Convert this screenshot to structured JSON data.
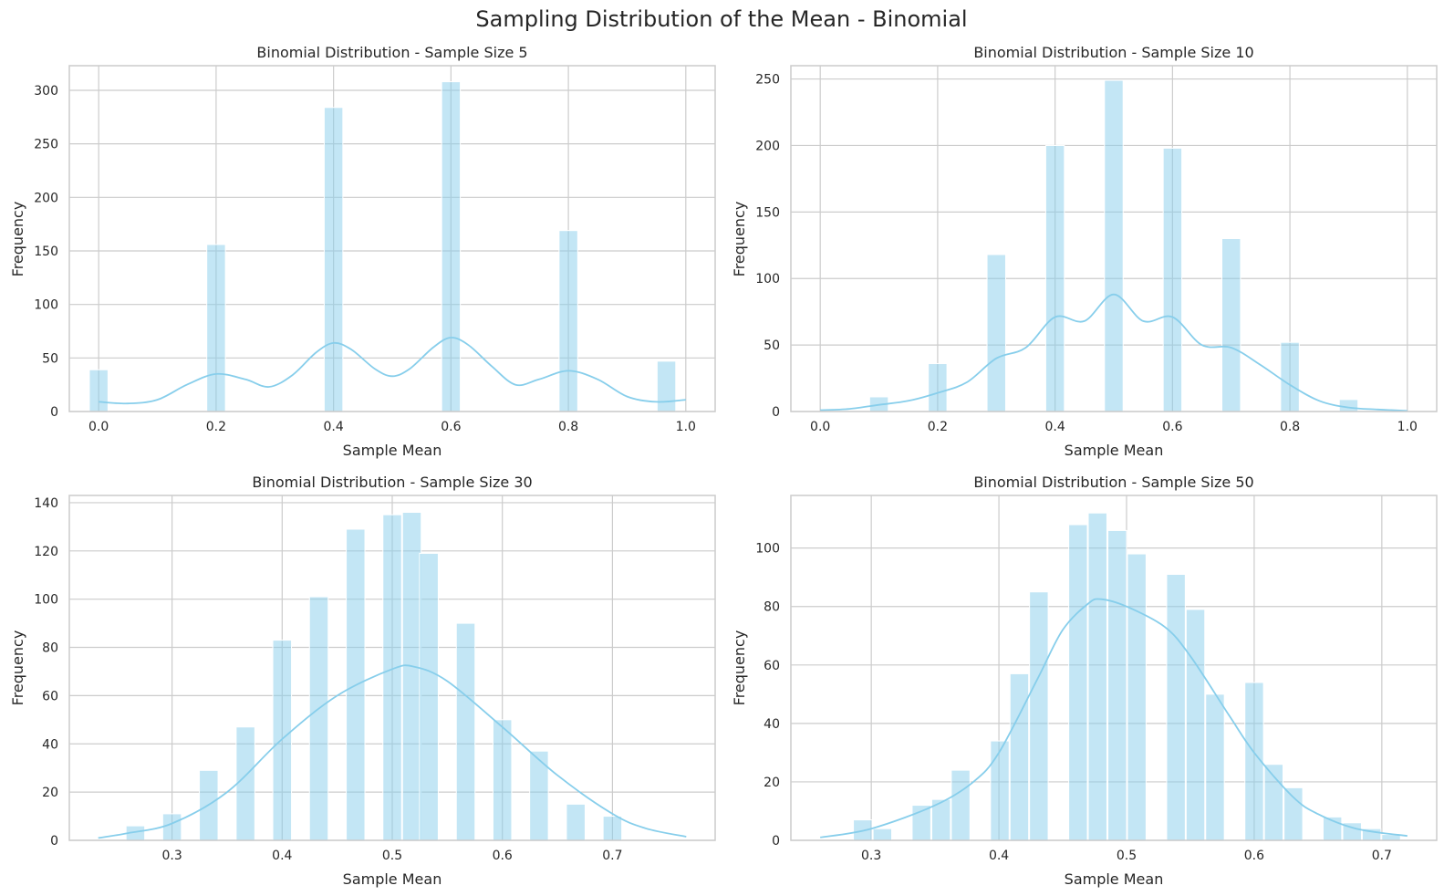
{
  "figure": {
    "title": "Sampling Distribution of the Mean - Binomial",
    "bar_color": "#87ceeb",
    "bar_opacity": 0.5,
    "kde_color": "#87ceeb",
    "grid": true
  },
  "chart_data": [
    {
      "type": "bar",
      "title": "Binomial Distribution - Sample Size 5",
      "xlabel": "Sample Mean",
      "ylabel": "Frequency",
      "xlim": [
        -0.05,
        1.05
      ],
      "ylim": [
        0,
        323
      ],
      "xticks": [
        0.0,
        0.2,
        0.4,
        0.6,
        0.8,
        1.0
      ],
      "xtick_labels": [
        "0.0",
        "0.2",
        "0.4",
        "0.6",
        "0.8",
        "1.0"
      ],
      "yticks": [
        0,
        50,
        100,
        150,
        200,
        250,
        300
      ],
      "bin_width": 0.0333,
      "bars": [
        {
          "x": 0.0,
          "y": 39
        },
        {
          "x": 0.2,
          "y": 156
        },
        {
          "x": 0.4,
          "y": 284
        },
        {
          "x": 0.6,
          "y": 308
        },
        {
          "x": 0.8,
          "y": 169
        },
        {
          "x": 0.967,
          "y": 47
        }
      ],
      "kde": [
        [
          0.0,
          9
        ],
        [
          0.05,
          7.5
        ],
        [
          0.1,
          11
        ],
        [
          0.15,
          25
        ],
        [
          0.2,
          35
        ],
        [
          0.25,
          30
        ],
        [
          0.29,
          23
        ],
        [
          0.33,
          34
        ],
        [
          0.37,
          55
        ],
        [
          0.4,
          64
        ],
        [
          0.43,
          58
        ],
        [
          0.47,
          40
        ],
        [
          0.5,
          33
        ],
        [
          0.53,
          40
        ],
        [
          0.57,
          60
        ],
        [
          0.6,
          69
        ],
        [
          0.63,
          62
        ],
        [
          0.67,
          42
        ],
        [
          0.71,
          25
        ],
        [
          0.75,
          30
        ],
        [
          0.8,
          38
        ],
        [
          0.85,
          30
        ],
        [
          0.9,
          14
        ],
        [
          0.95,
          9
        ],
        [
          1.0,
          11
        ]
      ]
    },
    {
      "type": "bar",
      "title": "Binomial Distribution - Sample Size 10",
      "xlabel": "Sample Mean",
      "ylabel": "Frequency",
      "xlim": [
        -0.05,
        1.05
      ],
      "ylim": [
        0,
        260
      ],
      "xticks": [
        0.0,
        0.2,
        0.4,
        0.6,
        0.8,
        1.0
      ],
      "xtick_labels": [
        "0.0",
        "0.2",
        "0.4",
        "0.6",
        "0.8",
        "1.0"
      ],
      "yticks": [
        0,
        50,
        100,
        150,
        200,
        250
      ],
      "bin_width": 0.0333,
      "bars": [
        {
          "x": 0.1,
          "y": 11
        },
        {
          "x": 0.2,
          "y": 36
        },
        {
          "x": 0.3,
          "y": 118
        },
        {
          "x": 0.4,
          "y": 200
        },
        {
          "x": 0.5,
          "y": 249
        },
        {
          "x": 0.6,
          "y": 198
        },
        {
          "x": 0.7,
          "y": 130
        },
        {
          "x": 0.8,
          "y": 52
        },
        {
          "x": 0.9,
          "y": 9
        }
      ],
      "kde": [
        [
          0.0,
          1
        ],
        [
          0.05,
          2
        ],
        [
          0.1,
          5
        ],
        [
          0.15,
          8
        ],
        [
          0.2,
          14
        ],
        [
          0.25,
          22
        ],
        [
          0.3,
          40
        ],
        [
          0.35,
          48
        ],
        [
          0.4,
          71
        ],
        [
          0.45,
          68
        ],
        [
          0.5,
          88
        ],
        [
          0.55,
          68
        ],
        [
          0.6,
          71
        ],
        [
          0.65,
          50
        ],
        [
          0.7,
          48
        ],
        [
          0.75,
          35
        ],
        [
          0.8,
          20
        ],
        [
          0.85,
          8
        ],
        [
          0.9,
          3
        ],
        [
          0.95,
          1.5
        ],
        [
          1.0,
          0.5
        ]
      ]
    },
    {
      "type": "bar",
      "title": "Binomial Distribution - Sample Size 30",
      "xlabel": "Sample Mean",
      "ylabel": "Frequency",
      "xlim": [
        0.2067,
        0.7933
      ],
      "ylim": [
        0,
        143
      ],
      "xticks": [
        0.3,
        0.4,
        0.5,
        0.6,
        0.7
      ],
      "xtick_labels": [
        "0.3",
        "0.4",
        "0.5",
        "0.6",
        "0.7"
      ],
      "yticks": [
        0,
        20,
        40,
        60,
        80,
        100,
        120,
        140
      ],
      "bin_width": 0.0178,
      "bars": [
        {
          "x": 0.2667,
          "y": 6
        },
        {
          "x": 0.3,
          "y": 11
        },
        {
          "x": 0.3333,
          "y": 29
        },
        {
          "x": 0.3667,
          "y": 47
        },
        {
          "x": 0.4,
          "y": 83
        },
        {
          "x": 0.4333,
          "y": 101
        },
        {
          "x": 0.4667,
          "y": 129
        },
        {
          "x": 0.5,
          "y": 135
        },
        {
          "x": 0.5178,
          "y": 136
        },
        {
          "x": 0.5333,
          "y": 119
        },
        {
          "x": 0.5667,
          "y": 90
        },
        {
          "x": 0.6,
          "y": 50
        },
        {
          "x": 0.6333,
          "y": 37
        },
        {
          "x": 0.6667,
          "y": 15
        },
        {
          "x": 0.7,
          "y": 10
        }
      ],
      "kde": [
        [
          0.233,
          1
        ],
        [
          0.26,
          3
        ],
        [
          0.3,
          7
        ],
        [
          0.35,
          20
        ],
        [
          0.4,
          42
        ],
        [
          0.45,
          60
        ],
        [
          0.5,
          71
        ],
        [
          0.52,
          72
        ],
        [
          0.55,
          66
        ],
        [
          0.6,
          47
        ],
        [
          0.65,
          27
        ],
        [
          0.7,
          11
        ],
        [
          0.73,
          5
        ],
        [
          0.767,
          1.5
        ]
      ]
    },
    {
      "type": "bar",
      "title": "Binomial Distribution - Sample Size 50",
      "xlabel": "Sample Mean",
      "ylabel": "Frequency",
      "xlim": [
        0.237,
        0.743
      ],
      "ylim": [
        0,
        118
      ],
      "xticks": [
        0.3,
        0.4,
        0.5,
        0.6,
        0.7
      ],
      "xtick_labels": [
        "0.3",
        "0.4",
        "0.5",
        "0.6",
        "0.7"
      ],
      "yticks": [
        0,
        20,
        40,
        60,
        80,
        100
      ],
      "bin_width": 0.0153,
      "bars": [
        {
          "x": 0.2933,
          "y": 7
        },
        {
          "x": 0.3087,
          "y": 4
        },
        {
          "x": 0.3393,
          "y": 12
        },
        {
          "x": 0.3547,
          "y": 14
        },
        {
          "x": 0.37,
          "y": 24
        },
        {
          "x": 0.4007,
          "y": 34
        },
        {
          "x": 0.416,
          "y": 57
        },
        {
          "x": 0.4313,
          "y": 85
        },
        {
          "x": 0.462,
          "y": 108
        },
        {
          "x": 0.4773,
          "y": 112
        },
        {
          "x": 0.4927,
          "y": 106
        },
        {
          "x": 0.508,
          "y": 98
        },
        {
          "x": 0.5387,
          "y": 91
        },
        {
          "x": 0.554,
          "y": 79
        },
        {
          "x": 0.5693,
          "y": 50
        },
        {
          "x": 0.6,
          "y": 54
        },
        {
          "x": 0.6153,
          "y": 26
        },
        {
          "x": 0.6307,
          "y": 18
        },
        {
          "x": 0.6613,
          "y": 8
        },
        {
          "x": 0.6767,
          "y": 6
        },
        {
          "x": 0.692,
          "y": 4
        },
        {
          "x": 0.7073,
          "y": 2
        }
      ],
      "kde": [
        [
          0.26,
          1
        ],
        [
          0.3,
          4
        ],
        [
          0.35,
          12
        ],
        [
          0.38,
          20
        ],
        [
          0.4,
          30
        ],
        [
          0.43,
          55
        ],
        [
          0.45,
          72
        ],
        [
          0.47,
          81
        ],
        [
          0.48,
          82.5
        ],
        [
          0.5,
          80
        ],
        [
          0.53,
          73
        ],
        [
          0.55,
          63
        ],
        [
          0.58,
          43
        ],
        [
          0.6,
          30
        ],
        [
          0.63,
          15
        ],
        [
          0.65,
          9
        ],
        [
          0.68,
          4
        ],
        [
          0.72,
          1.5
        ]
      ]
    }
  ]
}
